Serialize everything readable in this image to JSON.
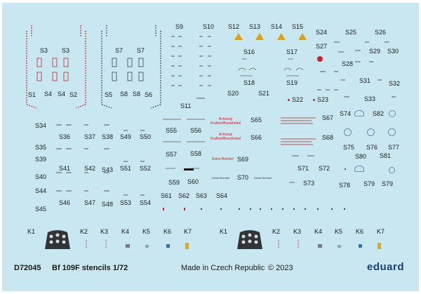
{
  "sheet": {
    "code": "D72045",
    "title": "Bf 109F stencils 1/72",
    "origin": "Made in Czech Republic",
    "copyright": "© 2023",
    "brand": "eduard"
  },
  "labels": [
    {
      "id": "S3a",
      "t": "S3"
    },
    {
      "id": "S3b",
      "t": "S3"
    },
    {
      "id": "S1",
      "t": "S1"
    },
    {
      "id": "S4a",
      "t": "S4"
    },
    {
      "id": "S4b",
      "t": "S4"
    },
    {
      "id": "S2",
      "t": "S2"
    },
    {
      "id": "S7a",
      "t": "S7"
    },
    {
      "id": "S7b",
      "t": "S7"
    },
    {
      "id": "S5",
      "t": "S5"
    },
    {
      "id": "S8a",
      "t": "S8"
    },
    {
      "id": "S8b",
      "t": "S8"
    },
    {
      "id": "S6",
      "t": "S6"
    },
    {
      "id": "S9",
      "t": "S9"
    },
    {
      "id": "S10",
      "t": "S10"
    },
    {
      "id": "S11",
      "t": "S11"
    },
    {
      "id": "S12",
      "t": "S12"
    },
    {
      "id": "S13",
      "t": "S13"
    },
    {
      "id": "S14",
      "t": "S14"
    },
    {
      "id": "S15",
      "t": "S15"
    },
    {
      "id": "S16",
      "t": "S16"
    },
    {
      "id": "S17",
      "t": "S17"
    },
    {
      "id": "S18",
      "t": "S18"
    },
    {
      "id": "S19",
      "t": "S19"
    },
    {
      "id": "S20",
      "t": "S20"
    },
    {
      "id": "S21",
      "t": "S21"
    },
    {
      "id": "S22",
      "t": "S22"
    },
    {
      "id": "S23",
      "t": "S23"
    },
    {
      "id": "S24",
      "t": "S24"
    },
    {
      "id": "S25",
      "t": "S25"
    },
    {
      "id": "S26",
      "t": "S26"
    },
    {
      "id": "S27",
      "t": "S27"
    },
    {
      "id": "S28",
      "t": "S28"
    },
    {
      "id": "S29",
      "t": "S29"
    },
    {
      "id": "S30",
      "t": "S30"
    },
    {
      "id": "S31",
      "t": "S31"
    },
    {
      "id": "S32",
      "t": "S32"
    },
    {
      "id": "S33",
      "t": "S33"
    },
    {
      "id": "S34",
      "t": "S34"
    },
    {
      "id": "S35",
      "t": "S35"
    },
    {
      "id": "S36",
      "t": "S36"
    },
    {
      "id": "S37",
      "t": "S37"
    },
    {
      "id": "S38",
      "t": "S38"
    },
    {
      "id": "S49",
      "t": "S49"
    },
    {
      "id": "S50",
      "t": "S50"
    },
    {
      "id": "S39",
      "t": "S39"
    },
    {
      "id": "S40",
      "t": "S40"
    },
    {
      "id": "S41",
      "t": "S41"
    },
    {
      "id": "S42",
      "t": "S42"
    },
    {
      "id": "S43",
      "t": "S43"
    },
    {
      "id": "S51",
      "t": "S51"
    },
    {
      "id": "S52",
      "t": "S52"
    },
    {
      "id": "S44",
      "t": "S44"
    },
    {
      "id": "S45",
      "t": "S45"
    },
    {
      "id": "S46",
      "t": "S46"
    },
    {
      "id": "S47",
      "t": "S47"
    },
    {
      "id": "S48",
      "t": "S48"
    },
    {
      "id": "S53",
      "t": "S53"
    },
    {
      "id": "S54",
      "t": "S54"
    },
    {
      "id": "S55",
      "t": "S55"
    },
    {
      "id": "S56",
      "t": "S56"
    },
    {
      "id": "S57",
      "t": "S57"
    },
    {
      "id": "S58",
      "t": "S58"
    },
    {
      "id": "S59",
      "t": "S59"
    },
    {
      "id": "S60",
      "t": "S60"
    },
    {
      "id": "S61",
      "t": "S61"
    },
    {
      "id": "S62",
      "t": "S62"
    },
    {
      "id": "S63",
      "t": "S63"
    },
    {
      "id": "S64",
      "t": "S64"
    },
    {
      "id": "S65",
      "t": "S65"
    },
    {
      "id": "S66",
      "t": "S66"
    },
    {
      "id": "S67",
      "t": "S67"
    },
    {
      "id": "S68",
      "t": "S68"
    },
    {
      "id": "S69",
      "t": "S69"
    },
    {
      "id": "S70",
      "t": "S70"
    },
    {
      "id": "S71",
      "t": "S71"
    },
    {
      "id": "S72",
      "t": "S72"
    },
    {
      "id": "S73",
      "t": "S73"
    },
    {
      "id": "S74",
      "t": "S74"
    },
    {
      "id": "S82",
      "t": "S82"
    },
    {
      "id": "S75",
      "t": "S75"
    },
    {
      "id": "S76",
      "t": "S76"
    },
    {
      "id": "S77",
      "t": "S77"
    },
    {
      "id": "S80",
      "t": "S80"
    },
    {
      "id": "S81",
      "t": "S81"
    },
    {
      "id": "S78",
      "t": "S78"
    },
    {
      "id": "S79a",
      "t": "S79"
    },
    {
      "id": "S79b",
      "t": "S79"
    },
    {
      "id": "K1a",
      "t": "K1"
    },
    {
      "id": "K2a",
      "t": "K2"
    },
    {
      "id": "K3a",
      "t": "K3"
    },
    {
      "id": "K4a",
      "t": "K4"
    },
    {
      "id": "K5a",
      "t": "K5"
    },
    {
      "id": "K6a",
      "t": "K6"
    },
    {
      "id": "K7a",
      "t": "K7"
    },
    {
      "id": "K1b",
      "t": "K1"
    },
    {
      "id": "K2b",
      "t": "K2"
    },
    {
      "id": "K3b",
      "t": "K3"
    },
    {
      "id": "K4b",
      "t": "K4"
    },
    {
      "id": "K5b",
      "t": "K5"
    },
    {
      "id": "K6b",
      "t": "K6"
    },
    {
      "id": "K7b",
      "t": "K7"
    }
  ],
  "stencil_text": {
    "achtung": "Achtung!",
    "kraftstoff": "Kraftstoffhandhebel",
    "keine_bombe": "Keine Bombe!"
  },
  "colors": {
    "sheet": "#c8e7f1",
    "red": "#c0272d",
    "yellow": "#d9a21c",
    "brand": "#1b3f7a"
  }
}
